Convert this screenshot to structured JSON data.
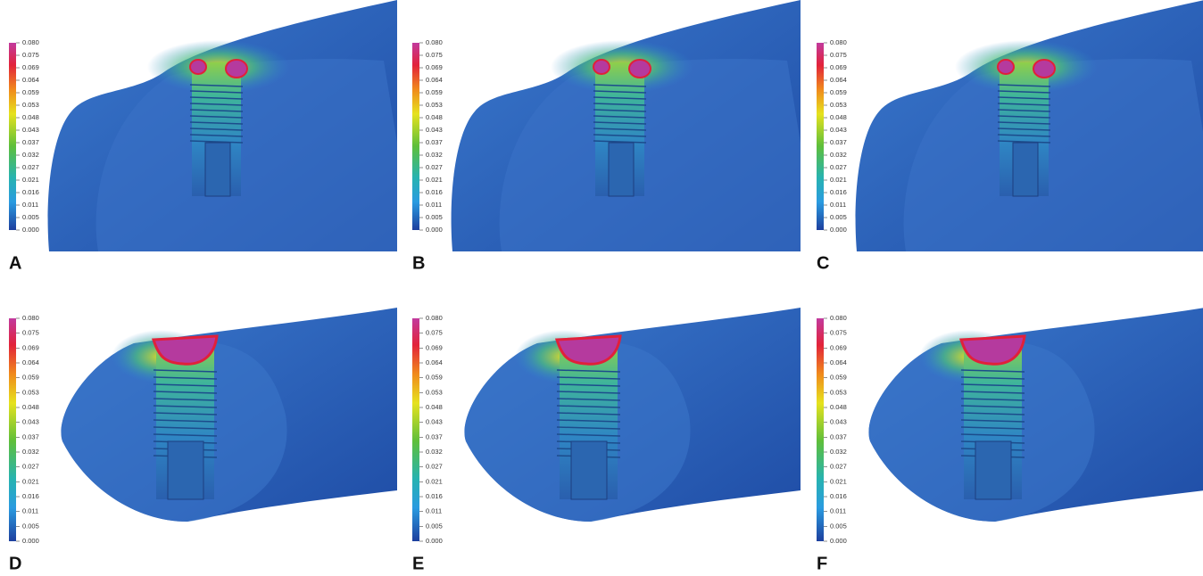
{
  "panels": [
    {
      "label": "A",
      "colorbar": {
        "ticks": [
          "0.080",
          "0.075",
          "0.069",
          "0.064",
          "0.059",
          "0.053",
          "0.048",
          "0.043",
          "0.037",
          "0.032",
          "0.027",
          "0.021",
          "0.016",
          "0.011",
          "0.005",
          "0.000"
        ]
      }
    },
    {
      "label": "B",
      "colorbar": {
        "ticks": [
          "0.080",
          "0.075",
          "0.069",
          "0.064",
          "0.059",
          "0.053",
          "0.048",
          "0.043",
          "0.037",
          "0.032",
          "0.027",
          "0.021",
          "0.016",
          "0.011",
          "0.005",
          "0.000"
        ]
      }
    },
    {
      "label": "C",
      "colorbar": {
        "ticks": [
          "0.080",
          "0.075",
          "0.069",
          "0.064",
          "0.059",
          "0.053",
          "0.048",
          "0.043",
          "0.037",
          "0.032",
          "0.027",
          "0.021",
          "0.016",
          "0.011",
          "0.005",
          "0.000"
        ]
      }
    },
    {
      "label": "D",
      "colorbar": {
        "ticks": [
          "0.080",
          "0.075",
          "0.069",
          "0.064",
          "0.059",
          "0.053",
          "0.048",
          "0.043",
          "0.037",
          "0.032",
          "0.027",
          "0.021",
          "0.016",
          "0.011",
          "0.005",
          "0.000"
        ]
      }
    },
    {
      "label": "E",
      "colorbar": {
        "ticks": [
          "0.080",
          "0.075",
          "0.069",
          "0.064",
          "0.059",
          "0.053",
          "0.048",
          "0.043",
          "0.037",
          "0.032",
          "0.027",
          "0.021",
          "0.016",
          "0.011",
          "0.005",
          "0.000"
        ]
      }
    },
    {
      "label": "F",
      "colorbar": {
        "ticks": [
          "0.080",
          "0.075",
          "0.069",
          "0.064",
          "0.059",
          "0.053",
          "0.048",
          "0.043",
          "0.037",
          "0.032",
          "0.027",
          "0.021",
          "0.016",
          "0.011",
          "0.005",
          "0.000"
        ]
      }
    }
  ]
}
